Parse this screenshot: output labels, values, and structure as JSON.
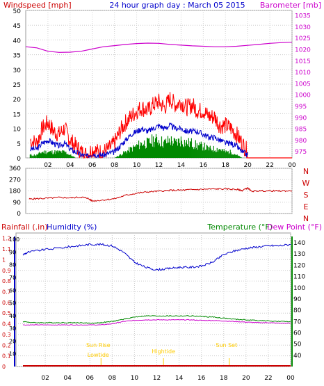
{
  "chart_data": [
    {
      "id": "wind-baro",
      "type": "line",
      "title": "24 hour graph day : March 05 2015",
      "y_label_left": "Windspeed [mph]",
      "y_label_right": "Barometer [mb]",
      "x_ticks": [
        "02",
        "04",
        "06",
        "08",
        "10",
        "12",
        "14",
        "16",
        "18",
        "20",
        "22",
        "00"
      ],
      "x_range": [
        0,
        24
      ],
      "y_left_range": [
        0,
        50
      ],
      "y_left_ticks": [
        0,
        5,
        10,
        15,
        20,
        25,
        30,
        35,
        40,
        45,
        50
      ],
      "y_right_range": [
        972,
        1037
      ],
      "y_right_ticks": [
        975,
        980,
        985,
        990,
        995,
        1000,
        1005,
        1010,
        1015,
        1020,
        1025,
        1030,
        1035
      ],
      "grid": true,
      "colors": {
        "left_axis": "#cc0000",
        "right_axis": "#cc00cc",
        "title": "#0000cc",
        "gust": "#ff0000",
        "average": "#0000cc",
        "direction_bars": "#008800",
        "barometer": "#cc00cc"
      },
      "series": [
        {
          "name": "Barometer",
          "axis": "right",
          "x": [
            0,
            1,
            2,
            3,
            4,
            5,
            6,
            7,
            8,
            9,
            10,
            11,
            12,
            13,
            14,
            15,
            16,
            17,
            18,
            19,
            20,
            21,
            22,
            23,
            24
          ],
          "values": [
            1021,
            1020.5,
            1019,
            1018.5,
            1018.6,
            1019,
            1020,
            1021,
            1021.5,
            1022,
            1022.4,
            1022.6,
            1022.5,
            1022,
            1021.7,
            1021.4,
            1021.2,
            1021,
            1021,
            1021.2,
            1021.6,
            1022,
            1022.5,
            1022.8,
            1023
          ]
        },
        {
          "name": "Wind gust",
          "axis": "left",
          "x": [
            0.4,
            1,
            1.5,
            2,
            2.5,
            3,
            3.5,
            4,
            4.5,
            5,
            5.5,
            6,
            6.5,
            7,
            7.5,
            8,
            8.5,
            9,
            9.5,
            10,
            10.5,
            11,
            11.5,
            12,
            12.5,
            13,
            13.5,
            14,
            14.5,
            15,
            15.5,
            16,
            16.5,
            17,
            17.5,
            18,
            18.5,
            19,
            19.5,
            20
          ],
          "values": [
            6,
            5,
            10,
            12,
            9,
            8,
            10,
            6,
            4,
            2,
            1,
            3,
            2,
            2,
            3,
            5,
            9,
            12,
            14,
            16,
            17,
            16,
            18,
            19,
            17,
            20,
            18,
            19,
            17,
            18,
            16,
            16,
            14,
            14,
            11,
            11,
            10,
            8,
            5,
            2
          ]
        },
        {
          "name": "Wind average",
          "axis": "left",
          "x": [
            0.4,
            1,
            1.5,
            2,
            2.5,
            3,
            3.5,
            4,
            4.5,
            5,
            5.5,
            6,
            6.5,
            7,
            7.5,
            8,
            8.5,
            9,
            9.5,
            10,
            10.5,
            11,
            11.5,
            12,
            12.5,
            13,
            13.5,
            14,
            14.5,
            15,
            15.5,
            16,
            16.5,
            17,
            17.5,
            18,
            18.5,
            19,
            19.5,
            20
          ],
          "values": [
            3,
            3,
            5,
            6,
            5,
            4,
            5,
            3,
            2,
            1,
            0.5,
            1.5,
            1,
            1,
            1.5,
            2,
            4,
            6,
            8,
            9,
            10,
            9,
            10,
            11,
            10,
            11,
            10,
            10,
            9,
            9,
            9,
            8,
            7,
            7,
            6,
            5,
            5,
            4,
            2,
            1
          ]
        },
        {
          "name": "Wind speed bars",
          "axis": "left",
          "x": [
            0.4,
            1,
            1.5,
            2,
            2.5,
            3,
            3.5,
            4,
            4.5,
            5,
            5.5,
            6,
            6.5,
            7,
            7.5,
            8,
            8.5,
            9,
            9.5,
            10,
            10.5,
            11,
            11.5,
            12,
            12.5,
            13,
            13.5,
            14,
            14.5,
            15,
            15.5,
            16,
            16.5,
            17,
            17.5,
            18,
            18.5,
            19,
            19.5,
            20
          ],
          "values": [
            1,
            1,
            2,
            2,
            2,
            2,
            2,
            1,
            0,
            0,
            0,
            0,
            0,
            0,
            0,
            0,
            1,
            2,
            3,
            4,
            5,
            5,
            6,
            6,
            5,
            6,
            5,
            6,
            5,
            5,
            4,
            4,
            3,
            3,
            3,
            2,
            2,
            1,
            0,
            0
          ]
        }
      ]
    },
    {
      "id": "direction",
      "type": "line",
      "y_left_range": [
        0,
        360
      ],
      "y_left_ticks": [
        0,
        90,
        180,
        270,
        360
      ],
      "y_right_labels": [
        "N",
        "W",
        "S",
        "E",
        "N"
      ],
      "x_range": [
        0,
        24
      ],
      "grid": true,
      "colors": {
        "axis": "#cc0000",
        "line": "#cc0000"
      },
      "series": [
        {
          "name": "Wind direction",
          "x": [
            0.3,
            1,
            2,
            3,
            4,
            5,
            5.5,
            6,
            7,
            8,
            9,
            10,
            11,
            12,
            13,
            14,
            15,
            16,
            17,
            18,
            19,
            19.5,
            20,
            20.3,
            21,
            22,
            23,
            24
          ],
          "values": [
            115,
            118,
            122,
            128,
            125,
            130,
            125,
            100,
            108,
            118,
            145,
            162,
            172,
            178,
            184,
            186,
            190,
            193,
            195,
            196,
            192,
            183,
            205,
            178,
            180,
            180,
            180,
            180
          ]
        }
      ]
    },
    {
      "id": "temp-humidity",
      "type": "line",
      "y_label_left": "Rainfall (.in)",
      "y_label_humidity": "Humidity (%)",
      "y_label_right": "Temperature (°F)",
      "y_label_dew": "Dew Point (°F)",
      "x_ticks": [
        "02",
        "04",
        "06",
        "08",
        "10",
        "12",
        "14",
        "16",
        "18",
        "20",
        "22",
        "00"
      ],
      "x_range": [
        0,
        24
      ],
      "y_rain_ticks": [
        "0",
        "0.1",
        "0.2",
        "0.3",
        "0.4",
        "0.5",
        "0.6",
        "0.7",
        "0.8",
        "0.9",
        "1",
        "1.1",
        "1.2"
      ],
      "y_rain_range": [
        0,
        1.25
      ],
      "y_humidity_ticks": [
        10,
        20,
        30,
        40,
        50,
        60,
        70,
        80,
        90,
        100
      ],
      "y_humidity_range": [
        0,
        105
      ],
      "y_temp_ticks": [
        40,
        50,
        60,
        70,
        80,
        90,
        100,
        110,
        120,
        130,
        140
      ],
      "y_temp_range": [
        30,
        148.7
      ],
      "grid": true,
      "colors": {
        "rain": "#cc0000",
        "humidity": "#0000cc",
        "temperature": "#008800",
        "dew_point": "#cc00cc",
        "sun": "#ffcc00"
      },
      "annotations": [
        {
          "text": "Sun Rise",
          "x": 7.0
        },
        {
          "text": "Lowtide",
          "x": 7.0
        },
        {
          "text": "Hightide",
          "x": 12.6
        },
        {
          "text": "Sun Set",
          "x": 18.5
        }
      ],
      "series": [
        {
          "name": "Humidity",
          "axis": "humidity",
          "x": [
            0,
            0.5,
            2,
            4,
            5,
            6,
            7,
            8,
            9,
            10,
            11,
            12,
            13,
            14,
            15,
            16,
            17,
            18,
            19,
            20,
            21,
            22,
            23,
            24
          ],
          "values": [
            88,
            90,
            92,
            94,
            95,
            96,
            96,
            95,
            90,
            82,
            78,
            76,
            77,
            78,
            78,
            79,
            82,
            88,
            91,
            93,
            94,
            95,
            95,
            96
          ]
        },
        {
          "name": "Temperature",
          "axis": "temp",
          "x": [
            0,
            1,
            2,
            3,
            4,
            5,
            6,
            7,
            8,
            9,
            10,
            11,
            12,
            13,
            14,
            15,
            16,
            17,
            18,
            19,
            20,
            21,
            22,
            23,
            24
          ],
          "values": [
            70,
            69,
            69,
            69,
            69,
            69,
            68.5,
            69,
            70,
            72,
            74,
            75,
            75,
            75,
            75,
            75,
            74.5,
            74,
            73,
            72,
            71.5,
            71,
            70.5,
            70,
            70
          ]
        },
        {
          "name": "Dew Point",
          "axis": "temp",
          "x": [
            0,
            1,
            2,
            3,
            4,
            5,
            6,
            7,
            8,
            9,
            10,
            11,
            12,
            13,
            14,
            15,
            16,
            17,
            18,
            19,
            20,
            21,
            22,
            23,
            24
          ],
          "values": [
            67,
            67,
            67,
            67,
            67,
            67,
            67,
            67,
            68,
            70,
            71,
            71.5,
            71.5,
            71.5,
            71.5,
            71.5,
            71,
            71,
            70.5,
            70,
            69.5,
            69,
            69,
            68.5,
            68.5
          ]
        },
        {
          "name": "Rainfall",
          "axis": "rain",
          "x": [
            0,
            24
          ],
          "values": [
            0,
            0
          ]
        }
      ]
    }
  ]
}
